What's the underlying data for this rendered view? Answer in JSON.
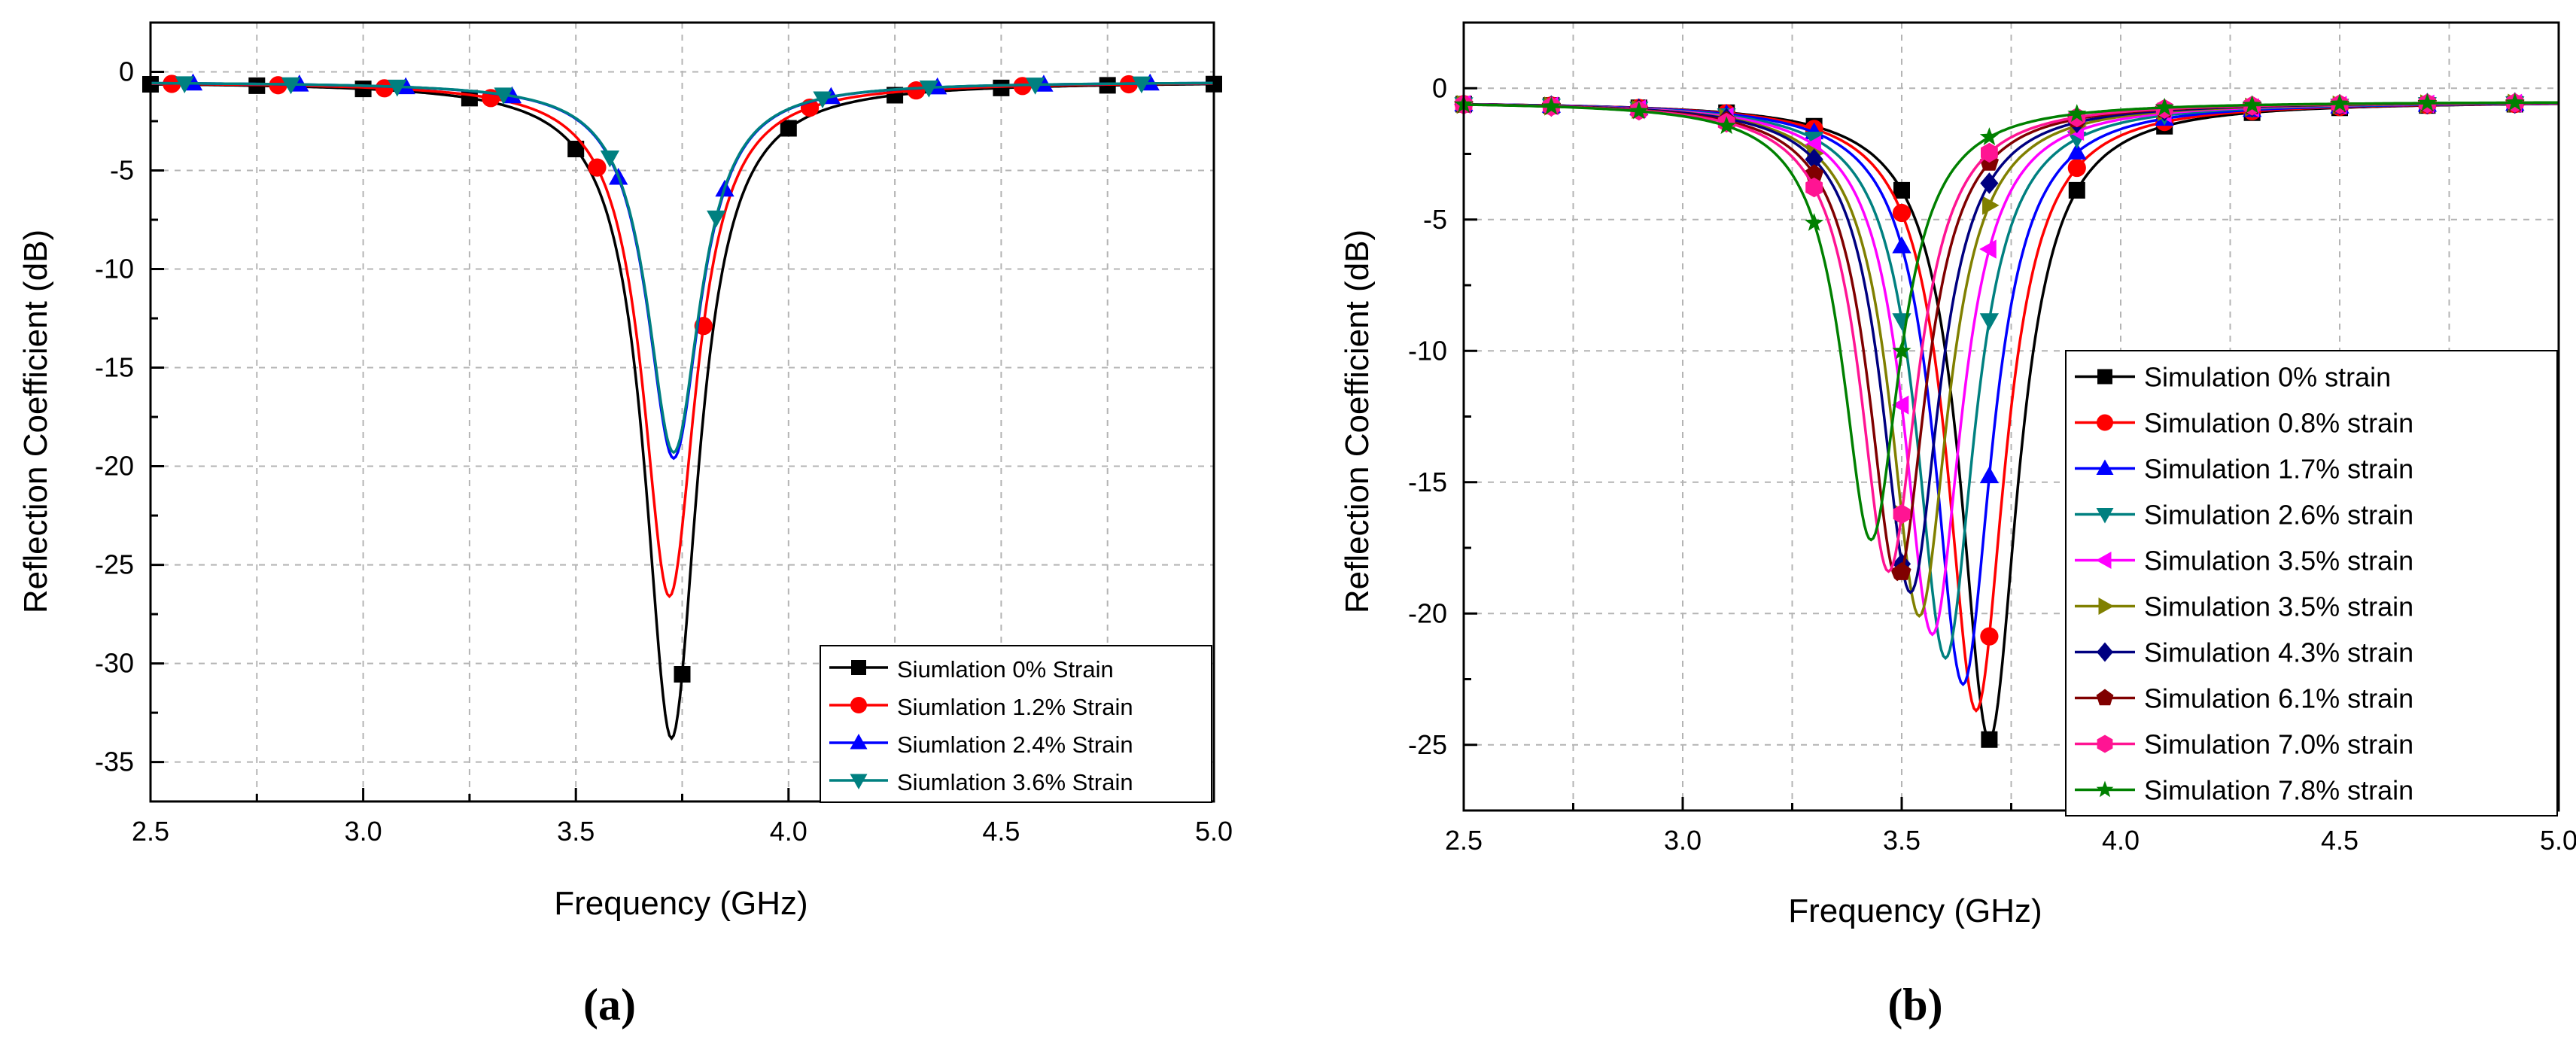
{
  "chart_data": [
    {
      "panel_label": "(a)",
      "type": "line",
      "xlabel": "Frequency (GHz)",
      "ylabel": "Reflection Coefficient (dB)",
      "xlim": [
        2.5,
        5.0
      ],
      "ylim": [
        -37,
        2.5
      ],
      "xticks": [
        2.5,
        3.0,
        3.5,
        4.0,
        4.5,
        5.0
      ],
      "xtick_labels": [
        "2.5",
        "3.0",
        "3.5",
        "4.0",
        "4.5",
        "5.0"
      ],
      "yticks": [
        0,
        -5,
        -10,
        -15,
        -20,
        -25,
        -30,
        -35
      ],
      "ytick_labels": [
        "0",
        "-5",
        "-10",
        "-15",
        "-20",
        "-25",
        "-30",
        "-35"
      ],
      "grid": true,
      "legend_position": "bottom-right",
      "series": [
        {
          "name": "Siumlation 0% Strain",
          "color": "#000000",
          "marker": "square",
          "f0": 3.725,
          "min": -33.8,
          "w": 0.17,
          "base": -0.5,
          "marker_x": [
            2.5,
            2.75,
            3.0,
            3.25,
            3.5,
            3.75,
            4.0,
            4.25,
            4.5,
            4.75,
            5.0
          ]
        },
        {
          "name": "Siumlation 1.2% Strain",
          "color": "#ff0000",
          "marker": "circle",
          "f0": 3.72,
          "min": -26.6,
          "w": 0.17,
          "base": -0.5,
          "marker_x": [
            2.55,
            2.8,
            3.05,
            3.3,
            3.55,
            3.8,
            4.05,
            4.3,
            4.55,
            4.8
          ]
        },
        {
          "name": "Siumlation 2.4% Strain",
          "color": "#0000ff",
          "marker": "triangle-up",
          "f0": 3.73,
          "min": -19.6,
          "w": 0.17,
          "base": -0.5,
          "marker_x": [
            2.6,
            2.85,
            3.1,
            3.35,
            3.6,
            3.85,
            4.1,
            4.35,
            4.6,
            4.85
          ]
        },
        {
          "name": "Siumlation 3.6% Strain",
          "color": "#008080",
          "marker": "triangle-down",
          "f0": 3.73,
          "min": -19.3,
          "w": 0.17,
          "base": -0.5,
          "marker_x": [
            2.58,
            2.83,
            3.08,
            3.33,
            3.58,
            3.83,
            4.08,
            4.33,
            4.58,
            4.83
          ]
        }
      ]
    },
    {
      "panel_label": "(b)",
      "type": "line",
      "xlabel": "Frequency (GHz)",
      "ylabel": "Reflection Coefficient (dB)",
      "xlim": [
        2.5,
        5.0
      ],
      "ylim": [
        -27.5,
        2.5
      ],
      "xticks": [
        2.5,
        3.0,
        3.5,
        4.0,
        4.5,
        5.0
      ],
      "xtick_labels": [
        "2.5",
        "3.0",
        "3.5",
        "4.0",
        "4.5",
        "5.0"
      ],
      "yticks": [
        0,
        -5,
        -10,
        -15,
        -20,
        -25
      ],
      "ytick_labels": [
        "0",
        "-5",
        "-10",
        "-15",
        "-20",
        "-25"
      ],
      "grid": true,
      "legend_position": "right",
      "series": [
        {
          "name": "Simulation 0% strain",
          "color": "#000000",
          "marker": "square",
          "f0": 3.7,
          "min": -24.8,
          "w": 0.18,
          "base": -0.5
        },
        {
          "name": "Simulation 0.8% strain",
          "color": "#ff0000",
          "marker": "circle",
          "f0": 3.67,
          "min": -23.7,
          "w": 0.18,
          "base": -0.5
        },
        {
          "name": "Simulation 1.7% strain",
          "color": "#0000ff",
          "marker": "triangle-up",
          "f0": 3.64,
          "min": -22.7,
          "w": 0.18,
          "base": -0.5
        },
        {
          "name": "Simulation 2.6% strain",
          "color": "#008080",
          "marker": "triangle-down",
          "f0": 3.6,
          "min": -21.7,
          "w": 0.18,
          "base": -0.5
        },
        {
          "name": "Simulation 3.5% strain",
          "color": "#ff00ff",
          "marker": "triangle-left",
          "f0": 3.57,
          "min": -20.8,
          "w": 0.18,
          "base": -0.5
        },
        {
          "name": "Simulation 3.5% strain",
          "color": "#808000",
          "marker": "triangle-right",
          "f0": 3.54,
          "min": -20.1,
          "w": 0.18,
          "base": -0.5
        },
        {
          "name": "Simulation 4.3% strain",
          "color": "#000080",
          "marker": "diamond",
          "f0": 3.52,
          "min": -19.2,
          "w": 0.18,
          "base": -0.5
        },
        {
          "name": "Simulation 6.1% strain",
          "color": "#800000",
          "marker": "pentagon",
          "f0": 3.49,
          "min": -18.7,
          "w": 0.18,
          "base": -0.5
        },
        {
          "name": "Simulation 7.0% strain",
          "color": "#ff1493",
          "marker": "hexagon",
          "f0": 3.47,
          "min": -18.4,
          "w": 0.18,
          "base": -0.5
        },
        {
          "name": "Simulation 7.8% strain",
          "color": "#008000",
          "marker": "star",
          "f0": 3.43,
          "min": -17.2,
          "w": 0.18,
          "base": -0.5
        }
      ],
      "marker_x": [
        2.5,
        2.7,
        2.9,
        3.1,
        3.3,
        3.5,
        3.7,
        3.9,
        4.1,
        4.3,
        4.5,
        4.7,
        4.9
      ]
    }
  ]
}
